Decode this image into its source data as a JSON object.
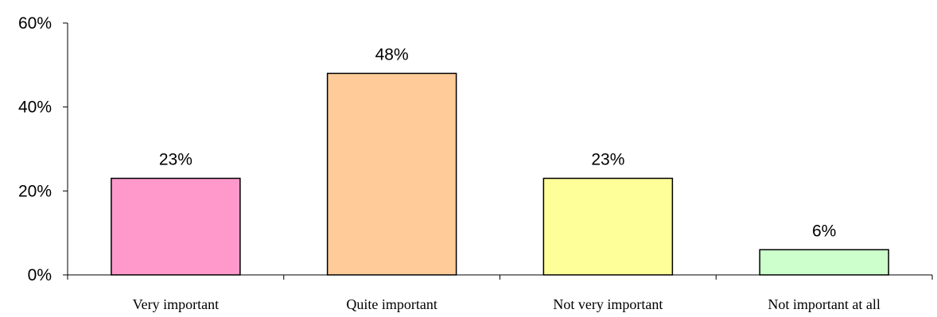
{
  "chart_data": {
    "type": "bar",
    "categories": [
      "Very important",
      "Quite important",
      "Not very important",
      "Not important at all"
    ],
    "values": [
      23,
      48,
      23,
      6
    ],
    "value_labels": [
      "23%",
      "48%",
      "23%",
      "6%"
    ],
    "colors": [
      "#ff99cc",
      "#ffcc99",
      "#ffff99",
      "#ccffcc"
    ],
    "ylim": [
      0,
      60
    ],
    "yticks": [
      0,
      20,
      40,
      60
    ],
    "ytick_labels": [
      "0%",
      "20%",
      "40%",
      "60%"
    ],
    "grid": false,
    "legend": "none"
  }
}
